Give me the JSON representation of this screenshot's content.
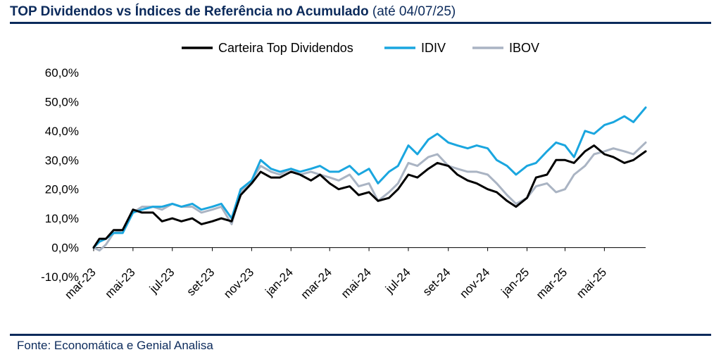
{
  "header": {
    "title": "TOP Dividendos vs Índices de Referência no Acumulado",
    "subtitle": "(até 04/07/25)"
  },
  "footer": {
    "source": "Fonte: Economática e Genial Analisa"
  },
  "chart_data": {
    "type": "line",
    "title": "TOP Dividendos vs Índices de Referência no Acumulado",
    "subtitle": "(até 04/07/25)",
    "xlabel": "",
    "ylabel": "",
    "ylim": [
      -10,
      60
    ],
    "y_ticks": [
      -10,
      0,
      10,
      20,
      30,
      40,
      50,
      60
    ],
    "y_tick_labels": [
      "-10,0%",
      "0,0%",
      "10,0%",
      "20,0%",
      "30,0%",
      "40,0%",
      "50,0%",
      "60,0%"
    ],
    "x_tick_labels": [
      "mar-23",
      "mai-23",
      "jul-23",
      "set-23",
      "nov-23",
      "jan-24",
      "mar-24",
      "mai-24",
      "jul-24",
      "set-24",
      "nov-24",
      "jan-25",
      "mar-25",
      "mai-25"
    ],
    "x_tick_dates": [
      "2023-03-01",
      "2023-05-01",
      "2023-07-01",
      "2023-09-01",
      "2023-11-01",
      "2024-01-01",
      "2024-03-01",
      "2024-05-01",
      "2024-07-01",
      "2024-09-01",
      "2024-11-01",
      "2025-01-01",
      "2025-03-01",
      "2025-05-01"
    ],
    "x_range": [
      "2023-03-01",
      "2025-07-04"
    ],
    "grid": false,
    "legend_position": "top-center",
    "x": [
      "2023-03-01",
      "2023-03-10",
      "2023-03-20",
      "2023-04-01",
      "2023-04-15",
      "2023-05-01",
      "2023-05-15",
      "2023-06-01",
      "2023-06-15",
      "2023-07-01",
      "2023-07-15",
      "2023-08-01",
      "2023-08-15",
      "2023-09-01",
      "2023-09-15",
      "2023-10-01",
      "2023-10-15",
      "2023-11-01",
      "2023-11-15",
      "2023-12-01",
      "2023-12-15",
      "2024-01-01",
      "2024-01-15",
      "2024-02-01",
      "2024-02-15",
      "2024-03-01",
      "2024-03-15",
      "2024-04-01",
      "2024-04-15",
      "2024-05-01",
      "2024-05-15",
      "2024-06-01",
      "2024-06-15",
      "2024-07-01",
      "2024-07-15",
      "2024-08-01",
      "2024-08-15",
      "2024-09-01",
      "2024-09-15",
      "2024-10-01",
      "2024-10-15",
      "2024-11-01",
      "2024-11-15",
      "2024-12-01",
      "2024-12-15",
      "2025-01-01",
      "2025-01-15",
      "2025-02-01",
      "2025-02-15",
      "2025-03-01",
      "2025-03-15",
      "2025-04-01",
      "2025-04-15",
      "2025-05-01",
      "2025-05-15",
      "2025-06-01",
      "2025-06-15",
      "2025-07-04"
    ],
    "series": [
      {
        "name": "Carteira Top Dividendos",
        "color": "#000000",
        "values": [
          0,
          3,
          3,
          6,
          6,
          13,
          12,
          12,
          9,
          10,
          9,
          10,
          8,
          9,
          10,
          9,
          18,
          22,
          26,
          24,
          24,
          26,
          25,
          23,
          25,
          22,
          20,
          21,
          18,
          19,
          16,
          17,
          20,
          25,
          24,
          27,
          29,
          28,
          25,
          23,
          22,
          20,
          19,
          16,
          14,
          17,
          24,
          25,
          30,
          30,
          29,
          33,
          35,
          32,
          31,
          29,
          30,
          33
        ]
      },
      {
        "name": "IDIV",
        "color": "#1aa6df",
        "values": [
          0,
          2,
          3,
          5,
          5,
          12,
          13,
          14,
          14,
          15,
          14,
          15,
          13,
          14,
          15,
          10,
          20,
          23,
          30,
          27,
          26,
          27,
          26,
          27,
          28,
          26,
          26,
          28,
          25,
          27,
          22,
          26,
          28,
          35,
          32,
          37,
          39,
          36,
          35,
          34,
          35,
          34,
          30,
          28,
          25,
          28,
          29,
          33,
          36,
          35,
          31,
          40,
          39,
          42,
          43,
          45,
          43,
          48
        ]
      },
      {
        "name": "IBOV",
        "color": "#aab4c3",
        "values": [
          0,
          -1,
          1,
          5,
          6,
          12,
          14,
          14,
          13,
          15,
          14,
          14,
          12,
          13,
          14,
          8,
          19,
          23,
          28,
          26,
          25,
          27,
          25,
          26,
          25,
          24,
          23,
          25,
          21,
          22,
          16,
          19,
          22,
          29,
          28,
          31,
          32,
          28,
          27,
          26,
          26,
          25,
          22,
          18,
          15,
          17,
          21,
          22,
          19,
          20,
          25,
          28,
          32,
          33,
          34,
          33,
          32,
          36
        ]
      }
    ]
  }
}
